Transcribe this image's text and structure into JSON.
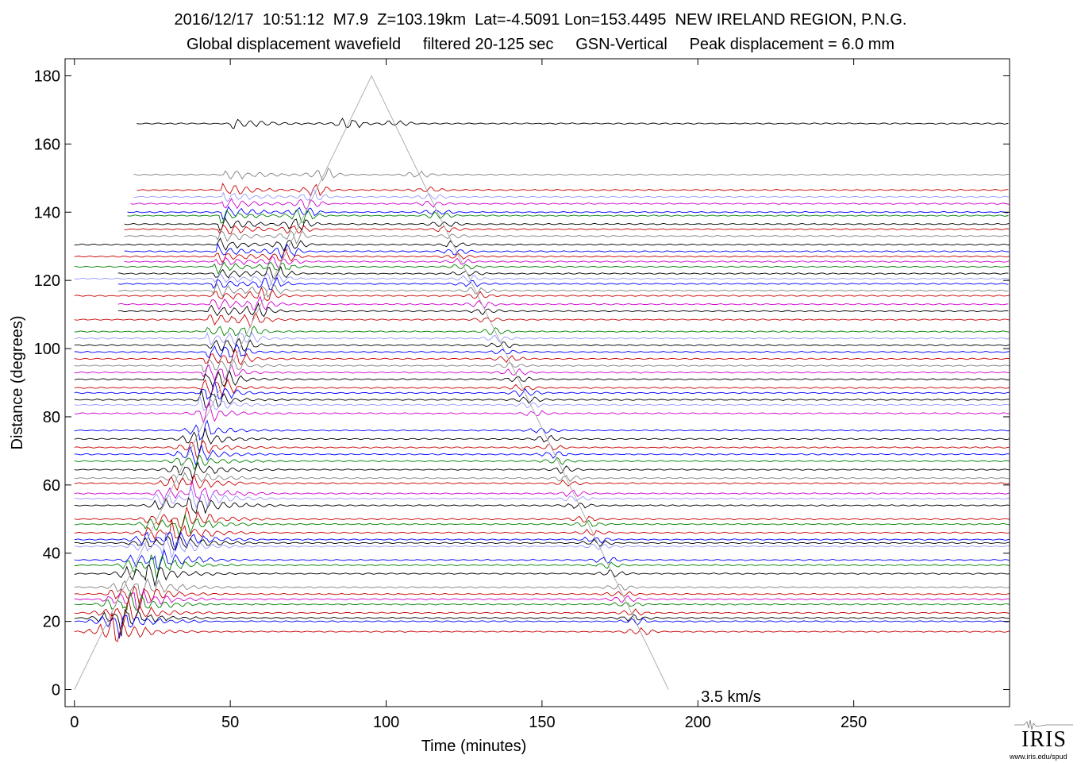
{
  "header": {
    "line1": "2016/12/17  10:51:12  M7.9  Z=103.19km  Lat=-4.5091 Lon=153.4495  NEW IRELAND REGION, P.N.G.",
    "line2": "Global displacement wavefield     filtered 20-125 sec     GSN-Vertical     Peak displacement = 6.0 mm"
  },
  "chart_data": {
    "type": "line",
    "title": "2016/12/17  10:51:12  M7.9  Z=103.19km  Lat=-4.5091 Lon=153.4495  NEW IRELAND REGION, P.N.G.",
    "subtitle": "Global displacement wavefield     filtered 20-125 sec     GSN-Vertical     Peak displacement = 6.0 mm",
    "xlabel": "Time (minutes)",
    "ylabel": "Distance (degrees)",
    "xlim": [
      -3,
      300
    ],
    "ylim": [
      -5,
      185
    ],
    "xticks": [
      0,
      50,
      100,
      150,
      200,
      250
    ],
    "yticks": [
      0,
      20,
      40,
      60,
      80,
      100,
      120,
      140,
      160,
      180
    ],
    "grid": false,
    "annotation": {
      "text": "3.5 km/s",
      "x": 201,
      "y": -2
    },
    "reference_curve": {
      "name": "3.5 km/s",
      "color": "#b0b0b0",
      "x": [
        0,
        95.3,
        190.6
      ],
      "y": [
        0,
        180,
        0
      ]
    },
    "trace_colors": [
      "#000000",
      "#808080",
      "#c80000",
      "#9999ff",
      "#d000d0",
      "#0000ff",
      "#008000"
    ],
    "traces": [
      {
        "distance": 166,
        "start": 20,
        "color": "#000000"
      },
      {
        "distance": 151,
        "start": 19,
        "color": "#808080"
      },
      {
        "distance": 146.5,
        "start": 20,
        "color": "#c80000"
      },
      {
        "distance": 144.5,
        "start": 19,
        "color": "#9999ff"
      },
      {
        "distance": 142.5,
        "start": 18,
        "color": "#d000d0"
      },
      {
        "distance": 140,
        "start": 17,
        "color": "#0000ff"
      },
      {
        "distance": 139,
        "start": 17,
        "color": "#008000"
      },
      {
        "distance": 136.5,
        "start": 16,
        "color": "#000000"
      },
      {
        "distance": 135,
        "start": 16,
        "color": "#c80000"
      },
      {
        "distance": 133,
        "start": 16,
        "color": "#808080"
      },
      {
        "distance": 130.5,
        "start": 0,
        "color": "#000000"
      },
      {
        "distance": 128.5,
        "start": 16,
        "color": "#0000ff"
      },
      {
        "distance": 127,
        "start": 0,
        "color": "#c80000"
      },
      {
        "distance": 125.5,
        "start": 16,
        "color": "#d000d0"
      },
      {
        "distance": 124,
        "start": 0,
        "color": "#008000"
      },
      {
        "distance": 122,
        "start": 14,
        "color": "#000000"
      },
      {
        "distance": 120.5,
        "start": 0,
        "color": "#9999ff"
      },
      {
        "distance": 119,
        "start": 14,
        "color": "#0000ff"
      },
      {
        "distance": 117,
        "start": 14,
        "color": "#808080"
      },
      {
        "distance": 115.5,
        "start": 0,
        "color": "#c80000"
      },
      {
        "distance": 113,
        "start": 14,
        "color": "#d000d0"
      },
      {
        "distance": 111,
        "start": 14,
        "color": "#000000"
      },
      {
        "distance": 108.5,
        "start": 0,
        "color": "#c80000"
      },
      {
        "distance": 105,
        "start": 0,
        "color": "#008000"
      },
      {
        "distance": 103,
        "start": 0,
        "color": "#9999ff"
      },
      {
        "distance": 101,
        "start": 0,
        "color": "#000000"
      },
      {
        "distance": 99,
        "start": 0,
        "color": "#0000ff"
      },
      {
        "distance": 97,
        "start": 0,
        "color": "#c80000"
      },
      {
        "distance": 95,
        "start": 0,
        "color": "#808080"
      },
      {
        "distance": 93,
        "start": 0,
        "color": "#d000d0"
      },
      {
        "distance": 91,
        "start": 0,
        "color": "#000000"
      },
      {
        "distance": 88.5,
        "start": 0,
        "color": "#c80000"
      },
      {
        "distance": 87,
        "start": 0,
        "color": "#0000ff"
      },
      {
        "distance": 85,
        "start": 0,
        "color": "#000000"
      },
      {
        "distance": 83.5,
        "start": 0,
        "color": "#9999ff"
      },
      {
        "distance": 81,
        "start": 0,
        "color": "#d000d0"
      },
      {
        "distance": 76,
        "start": 0,
        "color": "#0000ff"
      },
      {
        "distance": 73.5,
        "start": 0,
        "color": "#000000"
      },
      {
        "distance": 71,
        "start": 0,
        "color": "#c80000"
      },
      {
        "distance": 69,
        "start": 0,
        "color": "#0000ff"
      },
      {
        "distance": 67,
        "start": 0,
        "color": "#008000"
      },
      {
        "distance": 64.5,
        "start": 0,
        "color": "#000000"
      },
      {
        "distance": 62,
        "start": 0,
        "color": "#808080"
      },
      {
        "distance": 60.5,
        "start": 0,
        "color": "#c80000"
      },
      {
        "distance": 57.5,
        "start": 0,
        "color": "#d000d0"
      },
      {
        "distance": 56,
        "start": 0,
        "color": "#9999ff"
      },
      {
        "distance": 54,
        "start": 0,
        "color": "#000000"
      },
      {
        "distance": 50,
        "start": 0,
        "color": "#c80000"
      },
      {
        "distance": 48.5,
        "start": 0,
        "color": "#008000"
      },
      {
        "distance": 46,
        "start": 0,
        "color": "#c80000"
      },
      {
        "distance": 44,
        "start": 0,
        "color": "#0000ff"
      },
      {
        "distance": 43,
        "start": 0,
        "color": "#000000"
      },
      {
        "distance": 42,
        "start": 0,
        "color": "#9999ff"
      },
      {
        "distance": 38,
        "start": 0,
        "color": "#0000ff"
      },
      {
        "distance": 36.5,
        "start": 0,
        "color": "#008000"
      },
      {
        "distance": 34,
        "start": 0,
        "color": "#000000"
      },
      {
        "distance": 30,
        "start": 0,
        "color": "#808080"
      },
      {
        "distance": 28,
        "start": 0,
        "color": "#c80000"
      },
      {
        "distance": 26.5,
        "start": 0,
        "color": "#d000d0"
      },
      {
        "distance": 25,
        "start": 0,
        "color": "#008000"
      },
      {
        "distance": 22.5,
        "start": 0,
        "color": "#c80000"
      },
      {
        "distance": 21,
        "start": 0,
        "color": "#000000"
      },
      {
        "distance": 20,
        "start": 0,
        "color": "#0000ff"
      },
      {
        "distance": 17,
        "start": 0,
        "color": "#c80000"
      }
    ]
  },
  "logo": {
    "name": "IRIS",
    "url": "www.iris.edu/spud"
  }
}
